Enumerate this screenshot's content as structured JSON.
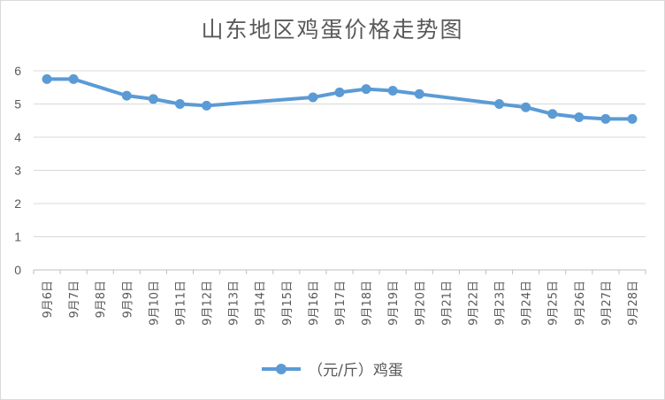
{
  "chart_data": {
    "type": "line",
    "title": "山东地区鸡蛋价格走势图",
    "categories": [
      "9月6日",
      "9月7日",
      "9月8日",
      "9月9日",
      "9月10日",
      "9月11日",
      "9月12日",
      "9月13日",
      "9月14日",
      "9月15日",
      "9月16日",
      "9月17日",
      "9月18日",
      "9月19日",
      "9月20日",
      "9月21日",
      "9月22日",
      "9月23日",
      "9月24日",
      "9月25日",
      "9月26日",
      "9月27日",
      "9月28日"
    ],
    "series": [
      {
        "name": "（元/斤）鸡蛋",
        "color": "#5b9bd5",
        "values": [
          5.75,
          5.75,
          null,
          5.25,
          5.15,
          5.0,
          4.95,
          null,
          null,
          null,
          5.2,
          5.35,
          5.45,
          5.4,
          5.3,
          null,
          null,
          5.0,
          4.9,
          4.7,
          4.6,
          4.55,
          4.55
        ]
      }
    ],
    "ylim": [
      0,
      6
    ],
    "yticks": [
      "0",
      "1",
      "2",
      "3",
      "4",
      "5",
      "6"
    ],
    "grid": true,
    "legend_position": "bottom"
  }
}
